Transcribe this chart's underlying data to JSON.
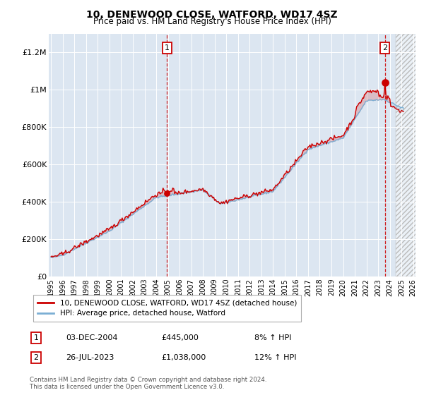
{
  "title": "10, DENEWOOD CLOSE, WATFORD, WD17 4SZ",
  "subtitle": "Price paid vs. HM Land Registry's House Price Index (HPI)",
  "ylim": [
    0,
    1300000
  ],
  "yticks": [
    0,
    200000,
    400000,
    600000,
    800000,
    1000000,
    1200000
  ],
  "ytick_labels": [
    "£0",
    "£200K",
    "£400K",
    "£600K",
    "£800K",
    "£1M",
    "£1.2M"
  ],
  "bg_color": "#dce6f1",
  "red_color": "#cc0000",
  "blue_color": "#7bafd4",
  "sale1_year": 2004.92,
  "sale1_price": 445000,
  "sale2_year": 2023.57,
  "sale2_price": 1038000,
  "legend_line1": "10, DENEWOOD CLOSE, WATFORD, WD17 4SZ (detached house)",
  "legend_line2": "HPI: Average price, detached house, Watford",
  "row1_num": "1",
  "row1_date": "03-DEC-2004",
  "row1_price": "£445,000",
  "row1_pct": "8% ↑ HPI",
  "row2_num": "2",
  "row2_date": "26-JUL-2023",
  "row2_price": "£1,038,000",
  "row2_pct": "12% ↑ HPI",
  "footer": "Contains HM Land Registry data © Crown copyright and database right 2024.\nThis data is licensed under the Open Government Licence v3.0.",
  "xmin": 1995,
  "xmax": 2026,
  "hatch_start": 2024.5
}
